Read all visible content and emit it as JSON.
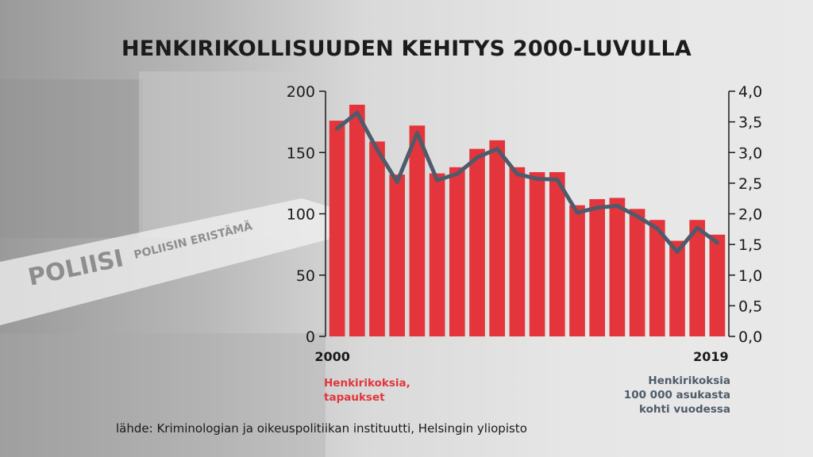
{
  "title": "HENKIRIKOLLISUUDEN KEHITYS 2000-LUVULLA",
  "source": "lähde: Kriminologian ja oikeuspolitiikan instituutti, Helsingin yliopisto",
  "legend": {
    "bars_line1": "Henkirikoksia,",
    "bars_line2": "tapaukset",
    "line_line1": "Henkirikoksia",
    "line_line2": "100 000 asukasta",
    "line_line3": "kohti vuodessa"
  },
  "background_text": {
    "tape_left": "POLIISI",
    "tape_right": "POLIISIN ERISTÄMÄ"
  },
  "colors": {
    "bars": "#e3353b",
    "line": "#4f5b6a",
    "text": "#1b1b1b"
  },
  "chart_data": {
    "type": "bar",
    "x": [
      2000,
      2001,
      2002,
      2003,
      2004,
      2005,
      2006,
      2007,
      2008,
      2009,
      2010,
      2011,
      2012,
      2013,
      2014,
      2015,
      2016,
      2017,
      2018,
      2019
    ],
    "x_tick_labels": [
      "2000",
      "2019"
    ],
    "series": [
      {
        "name": "Henkirikoksia, tapaukset",
        "type": "bar",
        "axis": "left",
        "values": [
          176,
          189,
          159,
          132,
          172,
          133,
          138,
          153,
          160,
          138,
          134,
          134,
          107,
          112,
          113,
          104,
          95,
          78,
          95,
          83
        ]
      },
      {
        "name": "Henkirikoksia 100 000 asukasta kohti vuodessa",
        "type": "line",
        "axis": "right",
        "values": [
          3.39,
          3.65,
          3.05,
          2.52,
          3.32,
          2.55,
          2.65,
          2.92,
          3.06,
          2.65,
          2.57,
          2.56,
          2.02,
          2.1,
          2.13,
          1.96,
          1.76,
          1.38,
          1.77,
          1.53
        ]
      }
    ],
    "y_left": {
      "lim": [
        0,
        200
      ],
      "ticks": [
        "0",
        "50",
        "100",
        "150",
        "200"
      ],
      "values": [
        0,
        50,
        100,
        150,
        200
      ]
    },
    "y_right": {
      "lim": [
        0,
        4
      ],
      "ticks": [
        "0,0",
        "0,5",
        "1,0",
        "1,5",
        "2,0",
        "2,5",
        "3,0",
        "3,5",
        "4,0"
      ],
      "values": [
        0,
        0.5,
        1,
        1.5,
        2,
        2.5,
        3,
        3.5,
        4
      ]
    },
    "grid": false
  }
}
